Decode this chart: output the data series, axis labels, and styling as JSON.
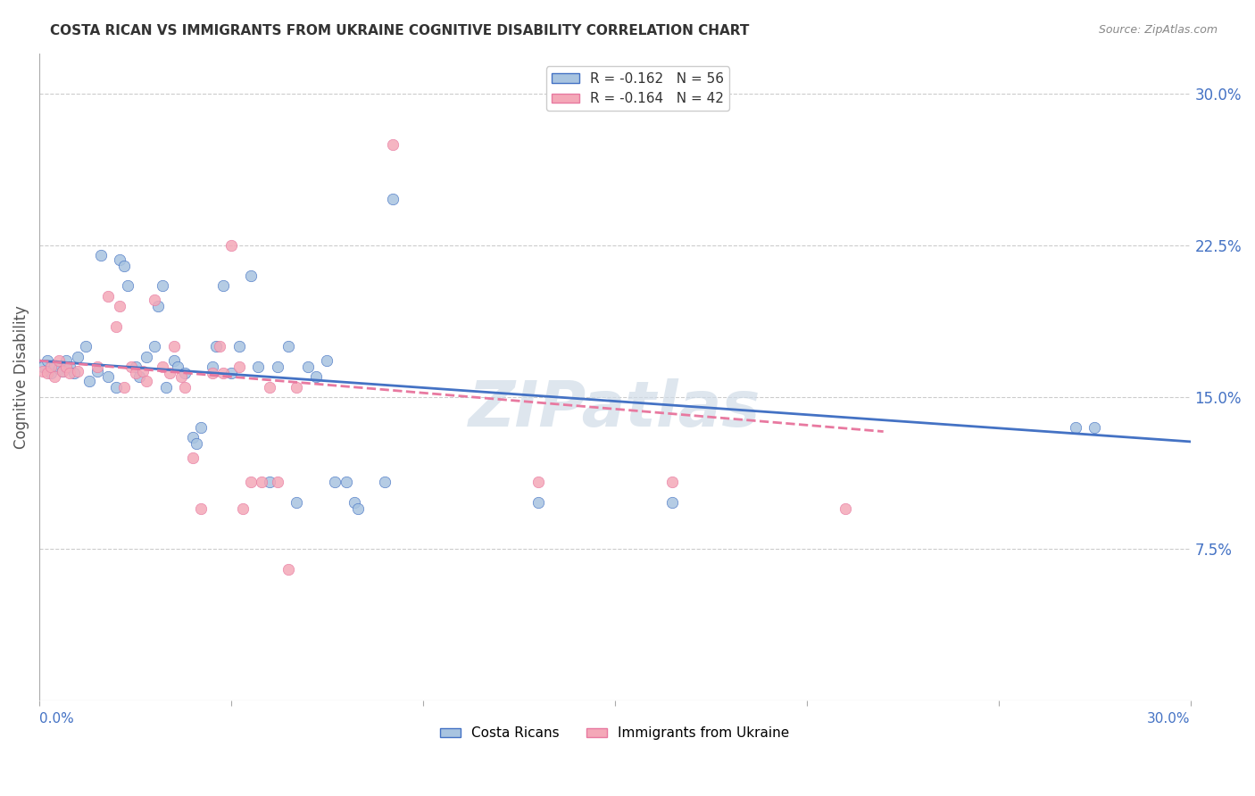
{
  "title": "COSTA RICAN VS IMMIGRANTS FROM UKRAINE COGNITIVE DISABILITY CORRELATION CHART",
  "source": "Source: ZipAtlas.com",
  "ylabel": "Cognitive Disability",
  "ytick_labels": [
    "7.5%",
    "15.0%",
    "22.5%",
    "30.0%"
  ],
  "ytick_values": [
    0.075,
    0.15,
    0.225,
    0.3
  ],
  "xlim": [
    0.0,
    0.3
  ],
  "ylim": [
    0.0,
    0.32
  ],
  "legend_entry1": "R = -0.162   N = 56",
  "legend_entry2": "R = -0.164   N = 42",
  "legend_label1": "Costa Ricans",
  "legend_label2": "Immigrants from Ukraine",
  "color_cr": "#a8c4e0",
  "color_uk": "#f4a8b8",
  "line_color_cr": "#4472c4",
  "line_color_uk": "#e879a0",
  "scatter_cr": [
    [
      0.001,
      0.165
    ],
    [
      0.002,
      0.168
    ],
    [
      0.003,
      0.162
    ],
    [
      0.004,
      0.166
    ],
    [
      0.005,
      0.164
    ],
    [
      0.006,
      0.163
    ],
    [
      0.007,
      0.168
    ],
    [
      0.008,
      0.165
    ],
    [
      0.009,
      0.162
    ],
    [
      0.01,
      0.17
    ],
    [
      0.012,
      0.175
    ],
    [
      0.013,
      0.158
    ],
    [
      0.015,
      0.163
    ],
    [
      0.016,
      0.22
    ],
    [
      0.018,
      0.16
    ],
    [
      0.02,
      0.155
    ],
    [
      0.021,
      0.218
    ],
    [
      0.022,
      0.215
    ],
    [
      0.023,
      0.205
    ],
    [
      0.025,
      0.165
    ],
    [
      0.026,
      0.16
    ],
    [
      0.028,
      0.17
    ],
    [
      0.03,
      0.175
    ],
    [
      0.031,
      0.195
    ],
    [
      0.032,
      0.205
    ],
    [
      0.033,
      0.155
    ],
    [
      0.035,
      0.168
    ],
    [
      0.036,
      0.165
    ],
    [
      0.038,
      0.162
    ],
    [
      0.04,
      0.13
    ],
    [
      0.041,
      0.127
    ],
    [
      0.042,
      0.135
    ],
    [
      0.045,
      0.165
    ],
    [
      0.046,
      0.175
    ],
    [
      0.048,
      0.205
    ],
    [
      0.05,
      0.162
    ],
    [
      0.052,
      0.175
    ],
    [
      0.055,
      0.21
    ],
    [
      0.057,
      0.165
    ],
    [
      0.06,
      0.108
    ],
    [
      0.062,
      0.165
    ],
    [
      0.065,
      0.175
    ],
    [
      0.067,
      0.098
    ],
    [
      0.07,
      0.165
    ],
    [
      0.072,
      0.16
    ],
    [
      0.075,
      0.168
    ],
    [
      0.077,
      0.108
    ],
    [
      0.08,
      0.108
    ],
    [
      0.082,
      0.098
    ],
    [
      0.083,
      0.095
    ],
    [
      0.09,
      0.108
    ],
    [
      0.092,
      0.248
    ],
    [
      0.13,
      0.098
    ],
    [
      0.165,
      0.098
    ],
    [
      0.27,
      0.135
    ],
    [
      0.275,
      0.135
    ]
  ],
  "scatter_uk": [
    [
      0.001,
      0.163
    ],
    [
      0.002,
      0.162
    ],
    [
      0.003,
      0.165
    ],
    [
      0.004,
      0.16
    ],
    [
      0.005,
      0.168
    ],
    [
      0.006,
      0.163
    ],
    [
      0.007,
      0.165
    ],
    [
      0.008,
      0.162
    ],
    [
      0.01,
      0.163
    ],
    [
      0.015,
      0.165
    ],
    [
      0.018,
      0.2
    ],
    [
      0.02,
      0.185
    ],
    [
      0.021,
      0.195
    ],
    [
      0.022,
      0.155
    ],
    [
      0.024,
      0.165
    ],
    [
      0.025,
      0.162
    ],
    [
      0.027,
      0.163
    ],
    [
      0.028,
      0.158
    ],
    [
      0.03,
      0.198
    ],
    [
      0.032,
      0.165
    ],
    [
      0.034,
      0.162
    ],
    [
      0.035,
      0.175
    ],
    [
      0.037,
      0.16
    ],
    [
      0.038,
      0.155
    ],
    [
      0.04,
      0.12
    ],
    [
      0.042,
      0.095
    ],
    [
      0.045,
      0.162
    ],
    [
      0.047,
      0.175
    ],
    [
      0.048,
      0.162
    ],
    [
      0.05,
      0.225
    ],
    [
      0.052,
      0.165
    ],
    [
      0.053,
      0.095
    ],
    [
      0.055,
      0.108
    ],
    [
      0.058,
      0.108
    ],
    [
      0.06,
      0.155
    ],
    [
      0.062,
      0.108
    ],
    [
      0.065,
      0.065
    ],
    [
      0.067,
      0.155
    ],
    [
      0.092,
      0.275
    ],
    [
      0.13,
      0.108
    ],
    [
      0.165,
      0.108
    ],
    [
      0.21,
      0.095
    ]
  ],
  "trend_cr": {
    "x_start": 0.0,
    "y_start": 0.168,
    "x_end": 0.3,
    "y_end": 0.128
  },
  "trend_uk": {
    "x_start": 0.0,
    "y_start": 0.168,
    "x_end": 0.22,
    "y_end": 0.133
  },
  "background_color": "#ffffff",
  "grid_color": "#cccccc",
  "watermark": "ZIPatlas",
  "watermark_color": "#d0dce8",
  "watermark_fontsize": 52
}
